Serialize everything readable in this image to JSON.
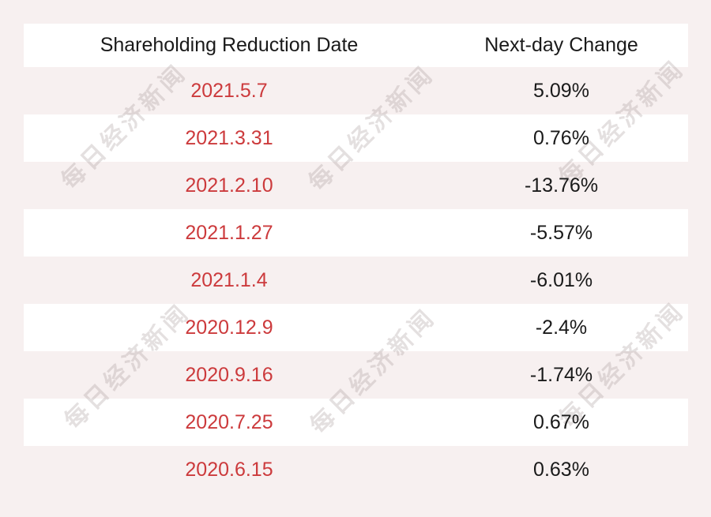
{
  "table": {
    "headers": {
      "date": "Shareholding Reduction Date",
      "change": "Next-day Change"
    },
    "rows": [
      {
        "date": "2021.5.7",
        "change": "5.09%"
      },
      {
        "date": "2021.3.31",
        "change": "0.76%"
      },
      {
        "date": "2021.2.10",
        "change": "-13.76%"
      },
      {
        "date": "2021.1.27",
        "change": "-5.57%"
      },
      {
        "date": "2021.1.4",
        "change": "-6.01%"
      },
      {
        "date": "2020.12.9",
        "change": "-2.4%"
      },
      {
        "date": "2020.9.16",
        "change": "-1.74%"
      },
      {
        "date": "2020.7.25",
        "change": "0.67%"
      },
      {
        "date": "2020.6.15",
        "change": "0.63%"
      }
    ]
  },
  "watermark": {
    "text": "每日经济新闻"
  },
  "colors": {
    "page_background": "#f7f0f0",
    "row_background_white": "#ffffff",
    "date_text": "#cc3a3c",
    "value_text": "#1a1a1a",
    "header_text": "#1a1a1a",
    "watermark_text": "rgba(152,134,134,0.26)"
  },
  "chart_data": {
    "type": "table",
    "title": "",
    "columns": [
      "Shareholding Reduction Date",
      "Next-day Change"
    ],
    "rows": [
      [
        "2021.5.7",
        "5.09%"
      ],
      [
        "2021.3.31",
        "0.76%"
      ],
      [
        "2021.2.10",
        "-13.76%"
      ],
      [
        "2021.1.27",
        "-5.57%"
      ],
      [
        "2021.1.4",
        "-6.01%"
      ],
      [
        "2020.12.9",
        "-2.4%"
      ],
      [
        "2020.9.16",
        "-1.74%"
      ],
      [
        "2020.7.25",
        "0.67%"
      ],
      [
        "2020.6.15",
        "0.63%"
      ]
    ],
    "values_numeric_percent": [
      5.09,
      0.76,
      -13.76,
      -5.57,
      -6.01,
      -2.4,
      -1.74,
      0.67,
      0.63
    ],
    "layout_hints": {
      "alternating_rows": "header white, then pink/white alternating starting pink",
      "date_column_color": "#cc3a3c",
      "watermark": "每日经济新闻 rotated -45deg, 3 columns x 2 bands"
    }
  }
}
